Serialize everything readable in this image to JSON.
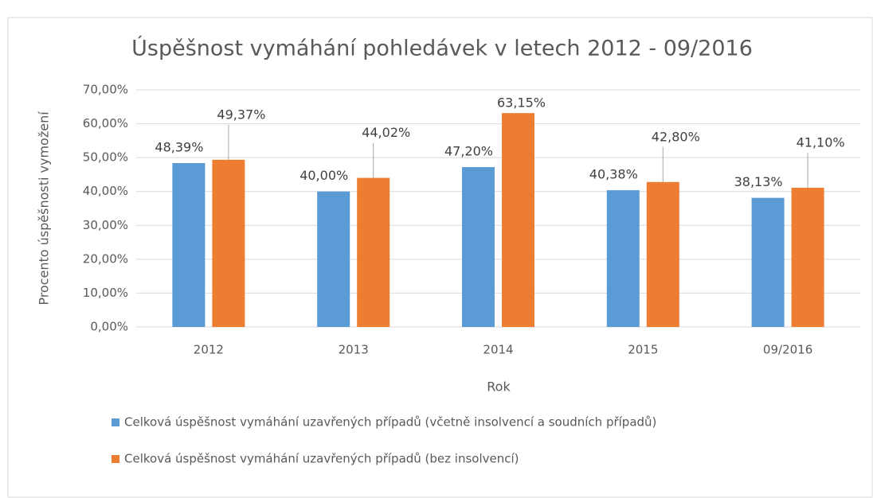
{
  "chart_data": {
    "type": "bar",
    "title": "Úspěšnost vymáhání pohledávek v letech 2012 - 09/2016",
    "x_label": "Rok",
    "y_label": "Procento úspěšnosti vymožení",
    "categories": [
      "2012",
      "2013",
      "2014",
      "2015",
      "09/2016"
    ],
    "series": [
      {
        "name": "Celková úspěšnost vymáhání uzavřených případů (včetně insolvencí a soudních případů)",
        "color": "#5b9bd5",
        "values": [
          48.39,
          40.0,
          47.2,
          40.38,
          38.13
        ],
        "value_labels": [
          "48,39%",
          "40,00%",
          "47,20%",
          "40,38%",
          "38,13%"
        ]
      },
      {
        "name": "Celková úspěšnost vymáhání uzavřených případů (bez insolvencí)",
        "color": "#ed7d31",
        "values": [
          49.37,
          44.02,
          63.15,
          42.8,
          41.1
        ],
        "value_labels": [
          "49,37%",
          "44,02%",
          "63,15%",
          "42,80%",
          "41,10%"
        ]
      }
    ],
    "ylim": [
      0,
      70
    ],
    "yticks": [
      {
        "value": 0,
        "label": "0,00%"
      },
      {
        "value": 10,
        "label": "10,00%"
      },
      {
        "value": 20,
        "label": "20,00%"
      },
      {
        "value": 30,
        "label": "30,00%"
      },
      {
        "value": 40,
        "label": "40,00%"
      },
      {
        "value": 50,
        "label": "50,00%"
      },
      {
        "value": 60,
        "label": "60,00%"
      },
      {
        "value": 70,
        "label": "70,00%"
      }
    ],
    "grid": true,
    "legend": "bottom"
  }
}
